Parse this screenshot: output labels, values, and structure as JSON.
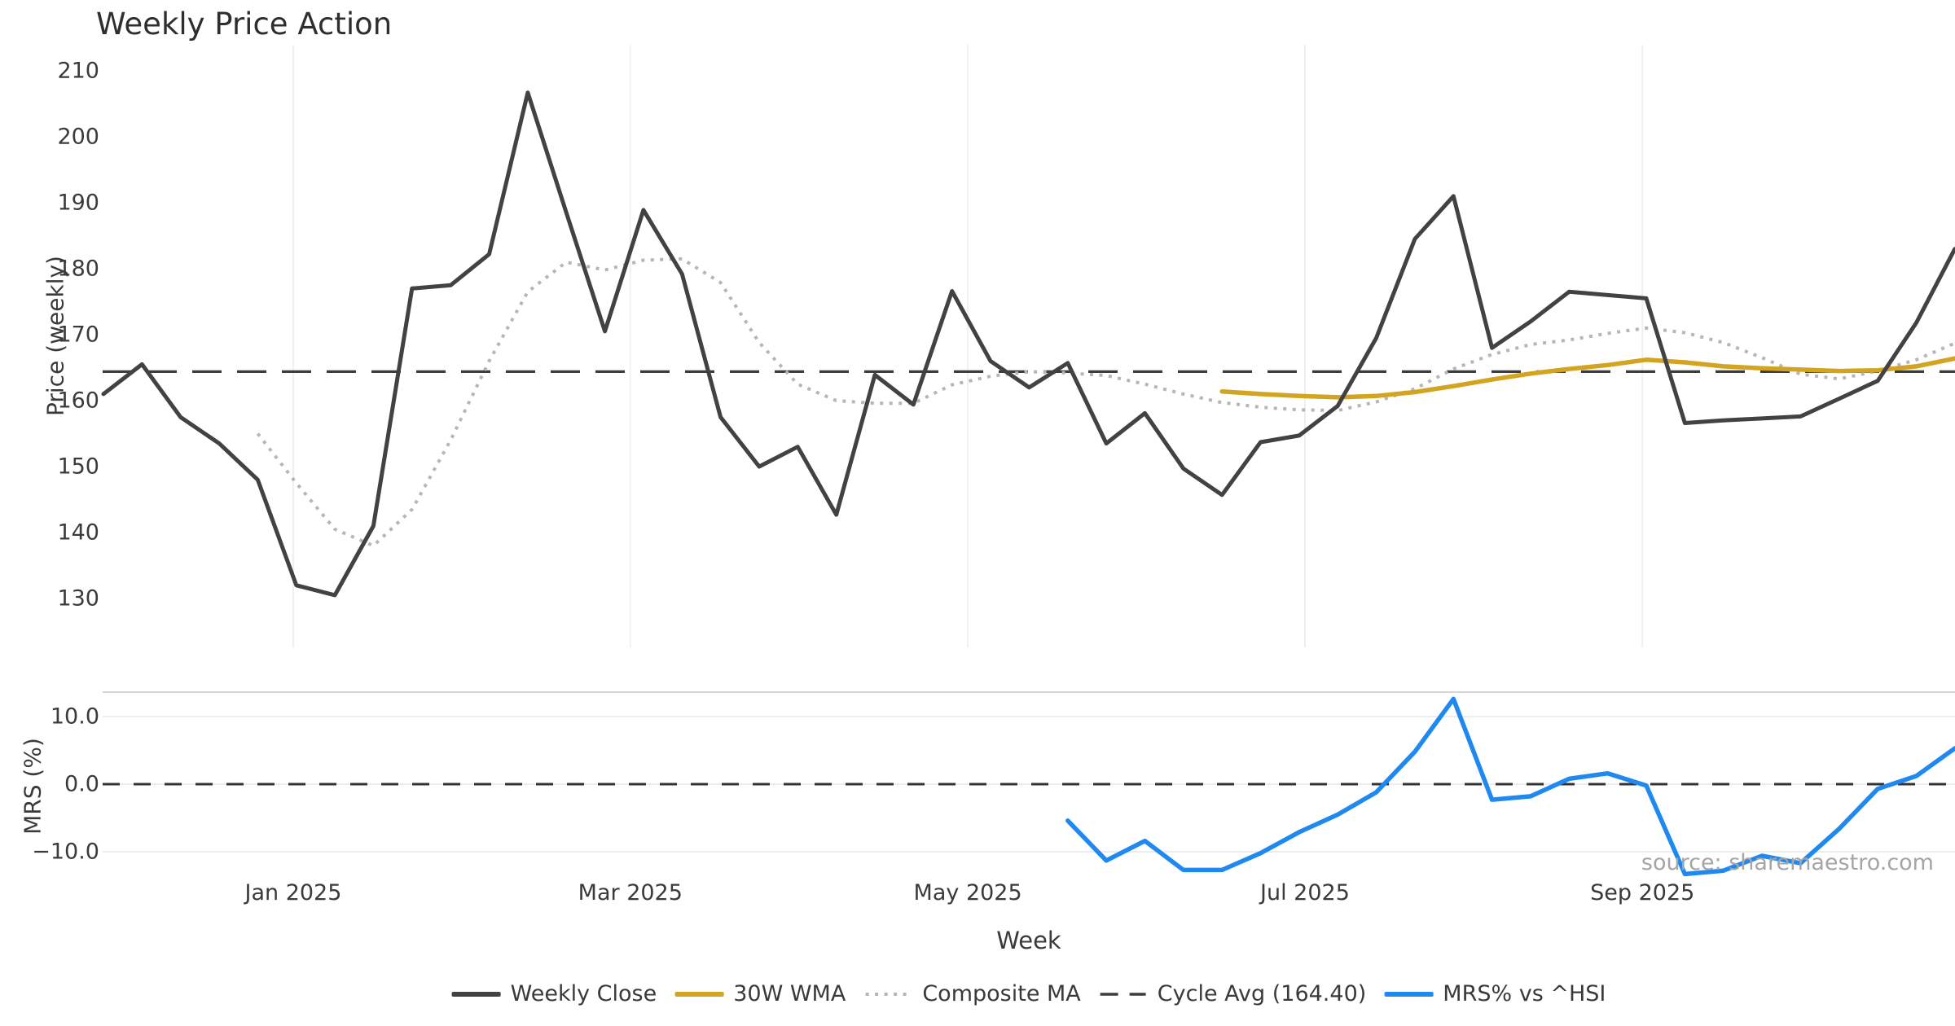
{
  "source": "source: sharemaestro.com",
  "chart_data": {
    "type": "line",
    "title": "Weekly Price Action",
    "xlabel": "Week",
    "x_unit": "weekly index (week 0 = late Nov 2024, spacing = 1 week)",
    "x_ticks": [
      {
        "label": "Jan 2025",
        "week": 4.92
      },
      {
        "label": "Mar 2025",
        "week": 13.66
      },
      {
        "label": "May 2025",
        "week": 22.41
      },
      {
        "label": "Jul 2025",
        "week": 31.15
      },
      {
        "label": "Sep 2025",
        "week": 39.9
      }
    ],
    "panels": [
      {
        "name": "price",
        "ylabel": "Price (weekly)",
        "ylim": [
          122.5,
          214
        ],
        "ytick_labels": [
          "210",
          "200",
          "190",
          "180",
          "170",
          "160",
          "150",
          "140",
          "130"
        ],
        "ytick_values": [
          210,
          200,
          190,
          180,
          170,
          160,
          150,
          140,
          130
        ],
        "grid": "vertical month gridlines only",
        "cycle_avg": 164.4,
        "series": [
          {
            "name": "Weekly Close",
            "color": "#424245",
            "style": "solid",
            "start_week": 0,
            "values": [
              161,
              165.5,
              157.5,
              153.5,
              148,
              132,
              130.5,
              141,
              177,
              177.5,
              182.2,
              206.7,
              188.5,
              170.5,
              188.9,
              179.2,
              157.5,
              150,
              153,
              142.7,
              163.9,
              159.4,
              176.6,
              166,
              162,
              165.7,
              153.5,
              158.1,
              149.7,
              145.7,
              153.7,
              154.7,
              159.2,
              169.5,
              184.5,
              191,
              168,
              172,
              176.5,
              176,
              175.5,
              156.6,
              157,
              157.3,
              157.6,
              160.3,
              163,
              171.8,
              183
            ]
          },
          {
            "name": "30W WMA",
            "color": "#d2a41f",
            "style": "solid",
            "start_week": 29,
            "values": [
              161.4,
              161.0,
              160.7,
              160.5,
              160.7,
              161.3,
              162.2,
              163.2,
              164.1,
              164.8,
              165.4,
              166.2,
              165.8,
              165.2,
              164.9,
              164.7,
              164.5,
              164.6,
              165.2,
              166.4
            ]
          },
          {
            "name": "Composite MA",
            "color": "#b6b6b6",
            "style": "dotted",
            "start_week": 4,
            "values": [
              155,
              147.5,
              140.5,
              138,
              143.5,
              154,
              166,
              176.5,
              181,
              179.8,
              181.3,
              181.5,
              177.9,
              168.8,
              162.5,
              160,
              159.6,
              159.6,
              162.4,
              163.7,
              164.4,
              164.2,
              163.8,
              162.5,
              161,
              159.7,
              159,
              158.6,
              158.5,
              159.8,
              161.8,
              164.8,
              167,
              168.5,
              169.2,
              170.2,
              171,
              170.3,
              168.8,
              166.5,
              164,
              163.3,
              164.5,
              166.2,
              168.7
            ]
          },
          {
            "name": "Cycle Avg (164.40)",
            "color": "#3c3c3c",
            "style": "dashed",
            "constant": 164.4
          }
        ]
      },
      {
        "name": "mrs",
        "ylabel": "MRS (%)",
        "ylim": [
          -16,
          13.6
        ],
        "ytick_labels": [
          "10.0",
          "0.0",
          "−10.0"
        ],
        "ytick_values": [
          10,
          0,
          -10
        ],
        "zero_line": 0,
        "series": [
          {
            "name": "MRS% vs ^HSI",
            "color": "#2089ef",
            "style": "solid",
            "start_week": 25,
            "values": [
              -5.4,
              -11.3,
              -8.4,
              -12.7,
              -12.7,
              -10.2,
              -7.1,
              -4.5,
              -1.2,
              4.8,
              12.6,
              -2.3,
              -1.8,
              0.8,
              1.6,
              -0.2,
              -13.3,
              -12.8,
              -10.6,
              -11.7,
              -6.6,
              -0.7,
              1.2,
              5.3
            ]
          }
        ]
      }
    ],
    "legend": [
      {
        "label": "Weekly Close",
        "color": "#424245",
        "style": "solid"
      },
      {
        "label": "30W WMA",
        "color": "#d2a41f",
        "style": "solid"
      },
      {
        "label": "Composite MA",
        "color": "#b6b6b6",
        "style": "dotted"
      },
      {
        "label": "Cycle Avg (164.40)",
        "color": "#3c3c3c",
        "style": "dashed"
      },
      {
        "label": "MRS% vs ^HSI",
        "color": "#2089ef",
        "style": "solid"
      }
    ],
    "legend_position": "bottom center"
  }
}
